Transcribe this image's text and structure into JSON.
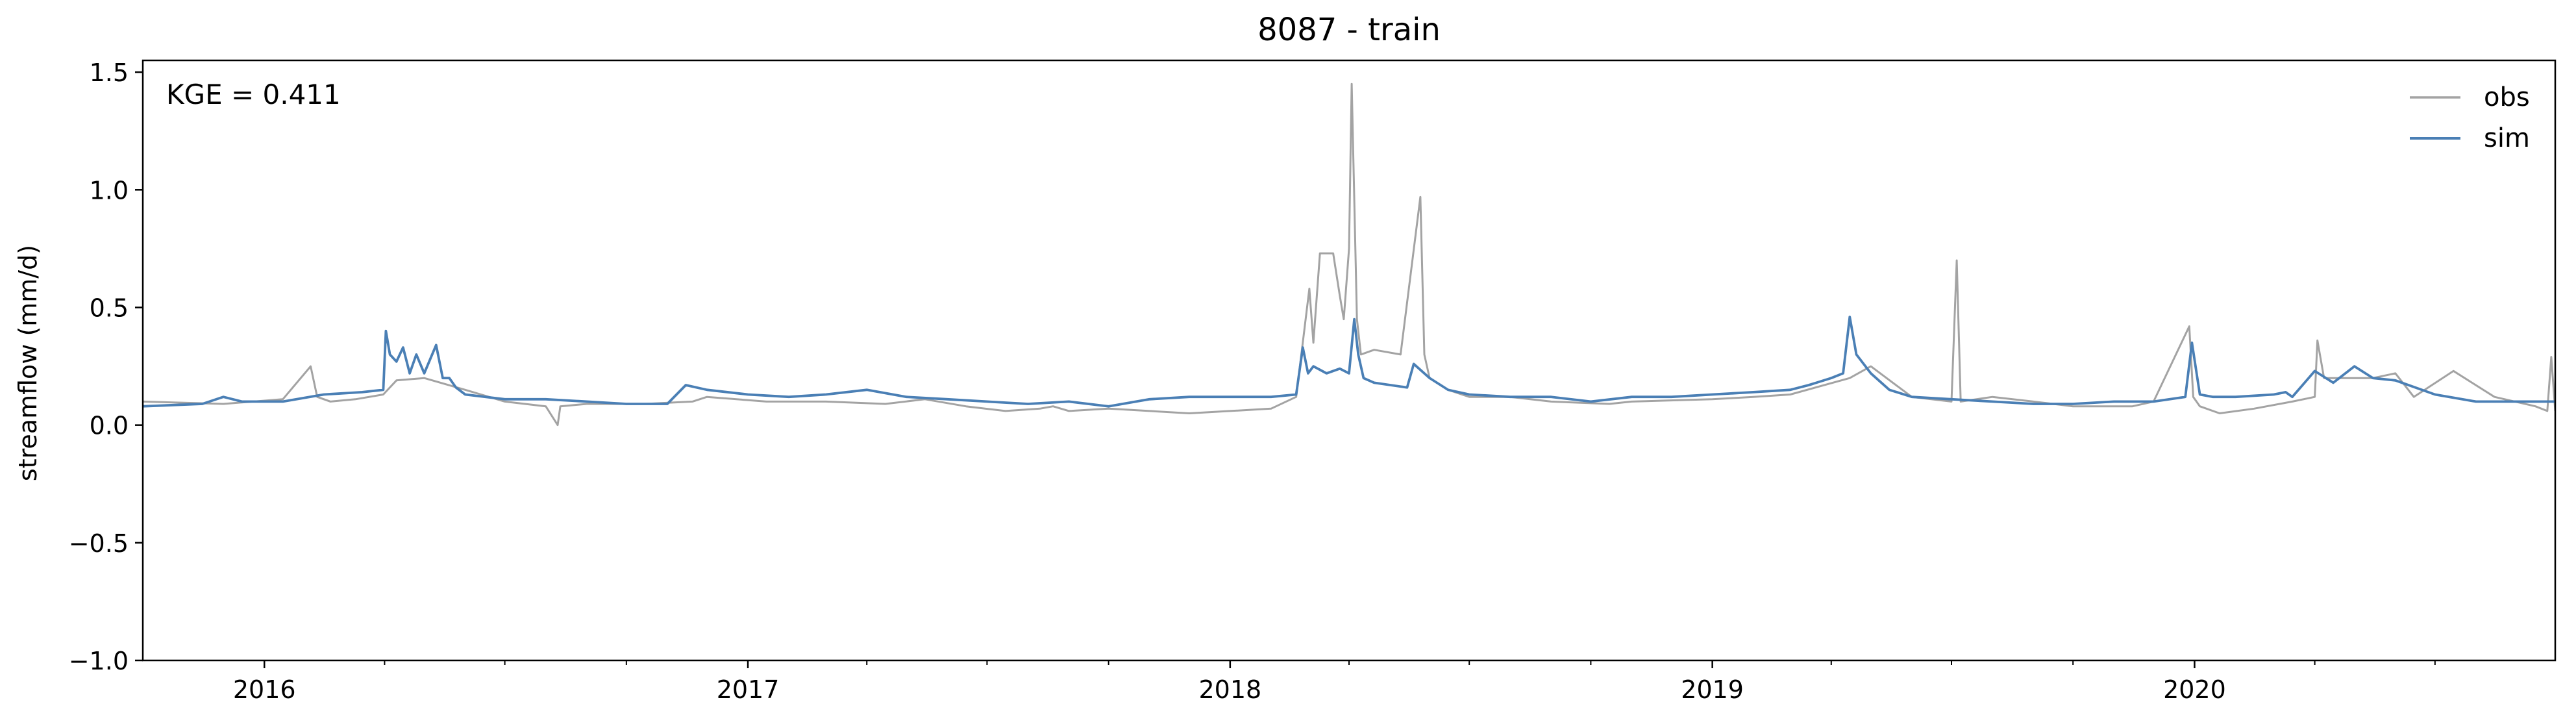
{
  "chart_data": {
    "type": "line",
    "title": "8087 - train",
    "xlabel": "",
    "ylabel": "streamflow (mm/d)",
    "annotation": "KGE = 0.411",
    "xlim": [
      "2015-10-01",
      "2020-09-30"
    ],
    "ylim": [
      -1.0,
      1.55
    ],
    "y_ticks": [
      {
        "value": -1.0,
        "label": "−1.0"
      },
      {
        "value": -0.5,
        "label": "−0.5"
      },
      {
        "value": 0.0,
        "label": "0.0"
      },
      {
        "value": 0.5,
        "label": "0.5"
      },
      {
        "value": 1.0,
        "label": "1.0"
      },
      {
        "value": 1.5,
        "label": "1.5"
      }
    ],
    "x_ticks": [
      {
        "value": "2016-01-01",
        "label": "2016"
      },
      {
        "value": "2017-01-01",
        "label": "2017"
      },
      {
        "value": "2018-01-01",
        "label": "2018"
      },
      {
        "value": "2019-01-01",
        "label": "2019"
      },
      {
        "value": "2020-01-01",
        "label": "2020"
      }
    ],
    "x_minor_ticks": [
      "2016-04-01",
      "2016-07-01",
      "2016-10-01",
      "2017-04-01",
      "2017-07-01",
      "2017-10-01",
      "2018-04-01",
      "2018-07-01",
      "2018-10-01",
      "2019-04-01",
      "2019-07-01",
      "2019-10-01",
      "2020-04-01",
      "2020-07-01"
    ],
    "grid": false,
    "legend": "top-right",
    "series": [
      {
        "name": "obs",
        "color": "#a3a3a3",
        "x": [
          "2015-10-01",
          "2015-12-01",
          "2016-01-15",
          "2016-02-05",
          "2016-02-10",
          "2016-02-20",
          "2016-03-10",
          "2016-03-31",
          "2016-04-10",
          "2016-05-01",
          "2016-06-01",
          "2016-07-01",
          "2016-08-01",
          "2016-08-10",
          "2016-08-12",
          "2016-09-01",
          "2016-10-15",
          "2016-11-20",
          "2016-12-01",
          "2017-01-15",
          "2017-03-01",
          "2017-04-15",
          "2017-05-15",
          "2017-06-15",
          "2017-07-15",
          "2017-08-10",
          "2017-08-20",
          "2017-09-01",
          "2017-10-01",
          "2017-11-01",
          "2017-12-01",
          "2018-01-01",
          "2018-02-01",
          "2018-02-20",
          "2018-03-02",
          "2018-03-05",
          "2018-03-10",
          "2018-03-20",
          "2018-03-25",
          "2018-03-28",
          "2018-04-01",
          "2018-04-03",
          "2018-04-07",
          "2018-04-10",
          "2018-04-20",
          "2018-05-10",
          "2018-05-25",
          "2018-05-28",
          "2018-06-01",
          "2018-06-15",
          "2018-07-01",
          "2018-08-01",
          "2018-09-01",
          "2018-10-15",
          "2018-11-01",
          "2019-01-01",
          "2019-02-01",
          "2019-03-01",
          "2019-04-15",
          "2019-05-01",
          "2019-06-01",
          "2019-07-01",
          "2019-07-05",
          "2019-07-08",
          "2019-08-01",
          "2019-09-01",
          "2019-10-01",
          "2019-11-15",
          "2019-12-01",
          "2019-12-28",
          "2019-12-31",
          "2020-01-05",
          "2020-01-20",
          "2020-02-15",
          "2020-03-15",
          "2020-04-01",
          "2020-04-03",
          "2020-04-08",
          "2020-05-15",
          "2020-06-01",
          "2020-06-15",
          "2020-07-15",
          "2020-08-15",
          "2020-09-15",
          "2020-09-24",
          "2020-09-27",
          "2020-09-30"
        ],
        "y": [
          0.1,
          0.09,
          0.11,
          0.25,
          0.12,
          0.1,
          0.11,
          0.13,
          0.19,
          0.2,
          0.15,
          0.1,
          0.08,
          0.0,
          0.08,
          0.09,
          0.09,
          0.1,
          0.12,
          0.1,
          0.1,
          0.09,
          0.11,
          0.08,
          0.06,
          0.07,
          0.08,
          0.06,
          0.07,
          0.06,
          0.05,
          0.06,
          0.07,
          0.12,
          0.58,
          0.35,
          0.73,
          0.73,
          0.55,
          0.45,
          0.75,
          1.45,
          0.45,
          0.3,
          0.32,
          0.3,
          0.97,
          0.3,
          0.2,
          0.15,
          0.12,
          0.12,
          0.1,
          0.09,
          0.1,
          0.11,
          0.12,
          0.13,
          0.2,
          0.25,
          0.12,
          0.1,
          0.7,
          0.1,
          0.12,
          0.1,
          0.08,
          0.08,
          0.1,
          0.42,
          0.12,
          0.08,
          0.05,
          0.07,
          0.1,
          0.12,
          0.36,
          0.2,
          0.2,
          0.22,
          0.12,
          0.23,
          0.12,
          0.08,
          0.06,
          0.29,
          0.06
        ]
      },
      {
        "name": "sim",
        "color": "#4a7fb5",
        "x": [
          "2015-10-01",
          "2015-11-15",
          "2015-12-01",
          "2015-12-15",
          "2016-01-15",
          "2016-02-15",
          "2016-03-15",
          "2016-03-31",
          "2016-04-02",
          "2016-04-05",
          "2016-04-10",
          "2016-04-15",
          "2016-04-20",
          "2016-04-25",
          "2016-05-01",
          "2016-05-10",
          "2016-05-15",
          "2016-05-20",
          "2016-05-25",
          "2016-06-01",
          "2016-07-01",
          "2016-08-01",
          "2016-09-01",
          "2016-10-01",
          "2016-11-01",
          "2016-11-15",
          "2016-12-01",
          "2017-01-01",
          "2017-02-01",
          "2017-03-01",
          "2017-04-01",
          "2017-05-01",
          "2017-06-01",
          "2017-07-01",
          "2017-08-01",
          "2017-09-01",
          "2017-10-01",
          "2017-11-01",
          "2017-12-01",
          "2018-01-01",
          "2018-02-01",
          "2018-02-20",
          "2018-02-25",
          "2018-03-01",
          "2018-03-05",
          "2018-03-15",
          "2018-03-25",
          "2018-04-01",
          "2018-04-05",
          "2018-04-08",
          "2018-04-12",
          "2018-04-20",
          "2018-05-15",
          "2018-05-20",
          "2018-06-01",
          "2018-06-15",
          "2018-07-01",
          "2018-08-01",
          "2018-09-01",
          "2018-10-01",
          "2018-11-01",
          "2018-12-01",
          "2019-01-01",
          "2019-02-01",
          "2019-03-01",
          "2019-03-15",
          "2019-04-01",
          "2019-04-10",
          "2019-04-15",
          "2019-04-20",
          "2019-05-01",
          "2019-05-15",
          "2019-06-01",
          "2019-07-01",
          "2019-08-01",
          "2019-09-01",
          "2019-10-01",
          "2019-11-01",
          "2019-12-01",
          "2019-12-25",
          "2019-12-30",
          "2020-01-05",
          "2020-01-15",
          "2020-02-01",
          "2020-03-01",
          "2020-03-10",
          "2020-03-15",
          "2020-04-01",
          "2020-04-15",
          "2020-05-01",
          "2020-05-15",
          "2020-06-01",
          "2020-07-01",
          "2020-08-01",
          "2020-09-01",
          "2020-09-30"
        ],
        "y": [
          0.08,
          0.09,
          0.12,
          0.1,
          0.1,
          0.13,
          0.14,
          0.15,
          0.4,
          0.3,
          0.27,
          0.33,
          0.22,
          0.3,
          0.22,
          0.34,
          0.2,
          0.2,
          0.16,
          0.13,
          0.11,
          0.11,
          0.1,
          0.09,
          0.09,
          0.17,
          0.15,
          0.13,
          0.12,
          0.13,
          0.15,
          0.12,
          0.11,
          0.1,
          0.09,
          0.1,
          0.08,
          0.11,
          0.12,
          0.12,
          0.12,
          0.13,
          0.33,
          0.22,
          0.25,
          0.22,
          0.24,
          0.22,
          0.45,
          0.3,
          0.2,
          0.18,
          0.16,
          0.26,
          0.2,
          0.15,
          0.13,
          0.12,
          0.12,
          0.1,
          0.12,
          0.12,
          0.13,
          0.14,
          0.15,
          0.17,
          0.2,
          0.22,
          0.46,
          0.3,
          0.22,
          0.15,
          0.12,
          0.11,
          0.1,
          0.09,
          0.09,
          0.1,
          0.1,
          0.12,
          0.35,
          0.13,
          0.12,
          0.12,
          0.13,
          0.14,
          0.12,
          0.23,
          0.18,
          0.25,
          0.2,
          0.19,
          0.13,
          0.1,
          0.1,
          0.1
        ]
      }
    ]
  }
}
